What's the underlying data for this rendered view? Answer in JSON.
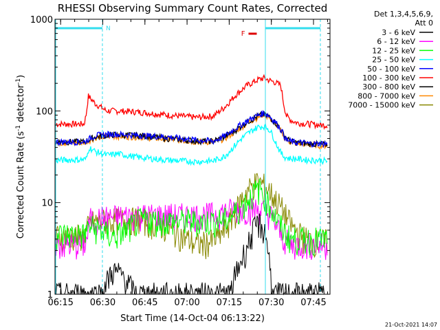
{
  "chart_data": {
    "type": "line",
    "title": "RHESSI Observing Summary Count Rates, Corrected",
    "xlabel": "Start Time (14-Oct-04 06:13:22)",
    "ylabel_main": "Corrected Count Rate (s",
    "ylabel_exp1": "-1",
    "ylabel_mid": " detector",
    "ylabel_exp2": "-1",
    "ylabel_end": ")",
    "y_scale": "log",
    "ylim": [
      1,
      1000
    ],
    "xlim_minutes": [
      -0.37,
      97.5
    ],
    "x_ticks": [
      {
        "label": "06:15",
        "t": 1.63
      },
      {
        "label": "06:30",
        "t": 16.63
      },
      {
        "label": "06:45",
        "t": 31.63
      },
      {
        "label": "07:00",
        "t": 46.63
      },
      {
        "label": "07:15",
        "t": 61.63
      },
      {
        "label": "07:30",
        "t": 76.63
      },
      {
        "label": "07:45",
        "t": 91.63
      }
    ],
    "y_ticks": [
      {
        "label": "1",
        "v": 1
      },
      {
        "label": "10",
        "v": 10
      },
      {
        "label": "100",
        "v": 100
      },
      {
        "label": "1000",
        "v": 1000
      }
    ],
    "legend_header": [
      "Det 1,3,4,5,6,9,",
      "Att 0"
    ],
    "legend_position": "right",
    "series": [
      {
        "name": "3 - 6 keV",
        "color": "#000000",
        "times": [
          0,
          12,
          16,
          20,
          24,
          28,
          35,
          45,
          55,
          60,
          62,
          64,
          66,
          68,
          70,
          72,
          74,
          75,
          76,
          77,
          78,
          80,
          82,
          84,
          86,
          88,
          90,
          92,
          94,
          97
        ],
        "values": [
          1,
          1,
          1,
          1.8,
          1.6,
          1,
          1,
          1,
          1,
          1,
          1,
          1.7,
          2.4,
          3.3,
          4.8,
          6,
          5,
          4,
          2.2,
          1,
          1,
          1,
          1,
          1,
          1,
          1,
          1,
          1,
          1,
          1
        ]
      },
      {
        "name": "6 - 12 keV",
        "color": "#ff00ff",
        "times": [
          0,
          10,
          11,
          12,
          20,
          30,
          40,
          50,
          55,
          60,
          64,
          68,
          70,
          72,
          74,
          76,
          78,
          80,
          82,
          84,
          88,
          92,
          97
        ],
        "values": [
          3.5,
          3.5,
          4,
          6.5,
          7,
          7.3,
          7.3,
          7.3,
          7.4,
          8,
          8.5,
          8.5,
          8.5,
          8.5,
          8.3,
          7.5,
          6,
          4.5,
          3.8,
          3.5,
          3.5,
          3.5,
          3.5
        ]
      },
      {
        "name": "12 - 25 keV",
        "color": "#00ff00",
        "times": [
          0,
          10,
          12,
          16,
          20,
          25,
          30,
          40,
          50,
          55,
          60,
          62,
          64,
          66,
          68,
          70,
          72,
          73,
          74,
          76,
          78,
          80,
          82,
          84,
          86,
          90,
          97
        ],
        "values": [
          4.5,
          4.5,
          5.5,
          5,
          4.2,
          5,
          6.5,
          6.3,
          6.3,
          6.3,
          6.5,
          7,
          8,
          9,
          10.5,
          12.5,
          14,
          14,
          12,
          9.5,
          7,
          5.5,
          4.5,
          4,
          4,
          4,
          4
        ]
      },
      {
        "name": "25 - 50 keV",
        "color": "#00ffff",
        "times": [
          0,
          10,
          10.8,
          11.8,
          14,
          18,
          22,
          30,
          40,
          50,
          56,
          60,
          63,
          66,
          68,
          70,
          72,
          74,
          75,
          76,
          77,
          78,
          79,
          80,
          81,
          82,
          84,
          86,
          90,
          94,
          97
        ],
        "values": [
          29,
          29.5,
          30,
          40,
          36,
          33,
          34,
          31,
          29,
          28,
          28.5,
          32,
          40,
          50,
          56,
          62,
          67,
          68,
          66,
          62,
          55,
          47,
          40,
          35,
          32,
          31,
          30,
          30,
          29,
          29,
          28
        ]
      },
      {
        "name": "50 - 100 keV",
        "color": "#0000ff",
        "times": [
          0,
          10,
          11,
          14,
          20,
          30,
          40,
          50,
          56,
          60,
          64,
          68,
          72,
          74,
          76,
          78,
          80,
          81,
          82,
          84,
          86,
          88,
          90,
          94,
          97
        ],
        "values": [
          46,
          46,
          48,
          54,
          56,
          54,
          52,
          48,
          47,
          53,
          65,
          78,
          90,
          95,
          88,
          76,
          64,
          55,
          48,
          46,
          45,
          45,
          44,
          44,
          44
        ]
      },
      {
        "name": "100 - 300 keV",
        "color": "#ff0000",
        "times": [
          0,
          10,
          10.7,
          11.5,
          14,
          18,
          22,
          30,
          40,
          50,
          56,
          60,
          64,
          68,
          72,
          74,
          76,
          78,
          80,
          81,
          82,
          84,
          86,
          90,
          94,
          97
        ],
        "values": [
          72,
          72,
          90,
          145,
          120,
          100,
          100,
          97,
          90,
          85,
          88,
          110,
          150,
          190,
          220,
          228,
          215,
          205,
          190,
          120,
          88,
          78,
          74,
          72,
          70,
          70
        ]
      },
      {
        "name": "300 - 800 keV",
        "color": "#000000",
        "times": [
          0,
          10,
          14,
          20,
          30,
          40,
          50,
          56,
          60,
          64,
          68,
          72,
          74,
          76,
          78,
          80,
          82,
          84,
          86,
          90,
          94,
          97
        ],
        "values": [
          46,
          46,
          52,
          55,
          54,
          50,
          47,
          47,
          52,
          62,
          76,
          88,
          92,
          86,
          75,
          62,
          50,
          46,
          45,
          44,
          43,
          43
        ]
      },
      {
        "name": "800 - 7000 keV",
        "color": "#ff8800",
        "times": [
          0,
          10,
          14,
          20,
          30,
          40,
          50,
          56,
          60,
          64,
          68,
          72,
          74,
          76,
          78,
          80,
          82,
          84,
          86,
          90,
          94,
          97
        ],
        "values": [
          45,
          45,
          51,
          53,
          52,
          49,
          46,
          46,
          50,
          60,
          74,
          86,
          92,
          84,
          74,
          60,
          48,
          45,
          44,
          43,
          42,
          42
        ]
      },
      {
        "name": "7000 - 15000 keV",
        "color": "#888800",
        "times": [
          0,
          10,
          12,
          16,
          22,
          30,
          38,
          44,
          50,
          56,
          60,
          62,
          64,
          66,
          68,
          70,
          72,
          74,
          76,
          78,
          80,
          82,
          84,
          88,
          92,
          97
        ],
        "values": [
          4.3,
          4.3,
          6,
          6.3,
          6.5,
          6.6,
          5.5,
          4.5,
          3.5,
          3.8,
          5,
          6.3,
          8,
          11,
          13.5,
          15.5,
          17,
          15.5,
          13.5,
          11,
          9,
          7,
          5.5,
          4.2,
          3.8,
          3.8
        ]
      }
    ],
    "night_marker": "N",
    "flare_marker": "F",
    "night_start_minute": 16.5,
    "day_start_minute": 74.5
  },
  "footer_timestamp": "21-Oct-2021 14:07"
}
